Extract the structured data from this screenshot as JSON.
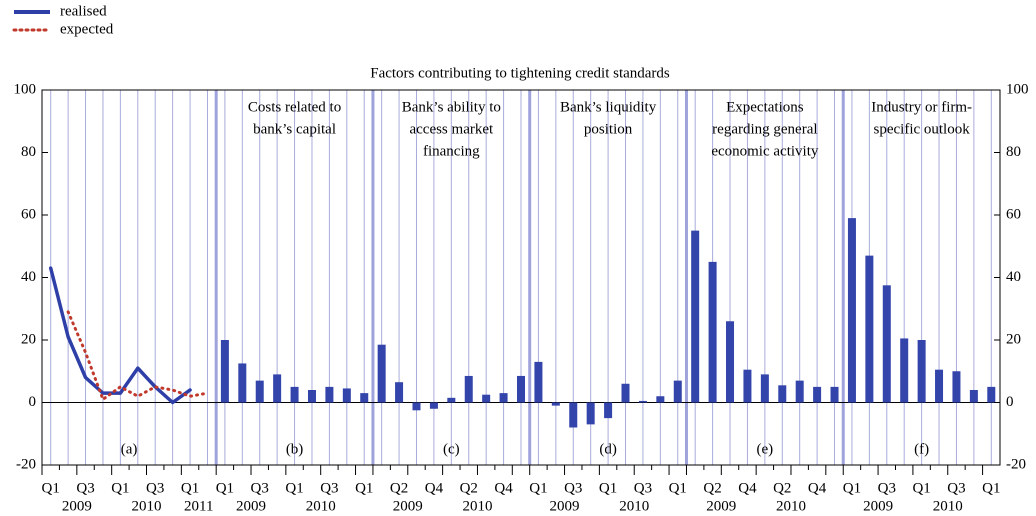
{
  "chart_data": {
    "type": "panels",
    "title": "Factors contributing to tightening credit standards",
    "ylim": [
      -20,
      100
    ],
    "yticks": [
      -20,
      0,
      20,
      40,
      60,
      80,
      100
    ],
    "panels": [
      {
        "type": "line",
        "label": "(a)",
        "categories": [
          "Q1",
          null,
          "Q3",
          null,
          "Q1",
          null,
          "Q3",
          null,
          "Q1",
          null
        ],
        "years": [
          "2009",
          "2010",
          "2011"
        ],
        "series": [
          {
            "name": "realised",
            "color": "#2e3fa8",
            "style": "solid",
            "values": [
              43,
              21,
              8,
              3,
              3,
              11,
              5,
              0,
              4,
              null
            ]
          },
          {
            "name": "expected",
            "color": "#c0392b",
            "style": "dotted",
            "values": [
              null,
              29,
              16,
              1,
              5,
              2,
              5,
              4,
              2,
              3
            ]
          }
        ]
      },
      {
        "type": "bar",
        "title": [
          "Costs related to",
          "bank’s capital"
        ],
        "label": "(b)",
        "color": "#3344aa",
        "categories": [
          "Q1",
          null,
          "Q3",
          null,
          "Q1",
          null,
          "Q3",
          null,
          "Q1"
        ],
        "years": [
          "2009",
          "2010"
        ],
        "values": [
          20,
          12.5,
          7,
          9,
          5,
          4,
          5,
          4.5,
          3
        ]
      },
      {
        "type": "bar",
        "title": [
          "Bank’s ability to",
          "access market",
          "financing"
        ],
        "label": "(c)",
        "color": "#3344aa",
        "categories": [
          null,
          "Q2",
          null,
          "Q4",
          null,
          "Q2",
          null,
          "Q4",
          null
        ],
        "years": [
          "2009",
          "2010"
        ],
        "values": [
          18.5,
          6.5,
          -2.5,
          -2,
          1.5,
          8.5,
          2.5,
          3,
          8.5
        ]
      },
      {
        "type": "bar",
        "title": [
          "Bank’s liquidity",
          "position"
        ],
        "label": "(d)",
        "color": "#3344aa",
        "categories": [
          "Q1",
          null,
          "Q3",
          null,
          "Q1",
          null,
          "Q3",
          null,
          "Q1"
        ],
        "years": [
          "2009",
          "2010"
        ],
        "values": [
          13,
          -1,
          -8,
          -7,
          -5,
          6,
          0.5,
          2,
          7
        ]
      },
      {
        "type": "bar",
        "title": [
          "Expectations",
          "regarding general",
          "economic activity"
        ],
        "label": "(e)",
        "color": "#3344aa",
        "categories": [
          null,
          "Q2",
          null,
          "Q4",
          null,
          "Q2",
          null,
          "Q4",
          null
        ],
        "years": [
          "2009",
          "2010"
        ],
        "values": [
          55,
          45,
          26,
          10.5,
          9,
          5.5,
          7,
          5,
          5
        ]
      },
      {
        "type": "bar",
        "title": [
          "Industry or firm-",
          "specific outlook"
        ],
        "label": "(f)",
        "color": "#3344aa",
        "categories": [
          "Q1",
          null,
          "Q3",
          null,
          "Q1",
          null,
          "Q3",
          null,
          "Q1"
        ],
        "years": [
          "2009",
          "2010"
        ],
        "values": [
          59,
          47,
          37.5,
          20.5,
          20,
          10.5,
          10,
          4,
          5
        ]
      }
    ]
  }
}
